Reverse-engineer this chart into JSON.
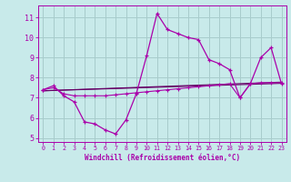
{
  "background_color": "#c8eaea",
  "grid_color": "#a8cccc",
  "line_color": "#aa00aa",
  "dark_line_color": "#660066",
  "xlabel": "Windchill (Refroidissement éolien,°C)",
  "ylim": [
    4.8,
    11.6
  ],
  "xlim": [
    -0.5,
    23.5
  ],
  "yticks": [
    5,
    6,
    7,
    8,
    9,
    10,
    11
  ],
  "xticks": [
    0,
    1,
    2,
    3,
    4,
    5,
    6,
    7,
    8,
    9,
    10,
    11,
    12,
    13,
    14,
    15,
    16,
    17,
    18,
    19,
    20,
    21,
    22,
    23
  ],
  "curve1_x": [
    0,
    1,
    2,
    3,
    4,
    5,
    6,
    7,
    8,
    9,
    10,
    11,
    12,
    13,
    14,
    15,
    16,
    17,
    18,
    19,
    20,
    21,
    22,
    23
  ],
  "curve1_y": [
    7.4,
    7.6,
    7.1,
    6.8,
    5.8,
    5.7,
    5.4,
    5.2,
    5.9,
    7.2,
    9.1,
    11.2,
    10.4,
    10.2,
    10.0,
    9.9,
    8.9,
    8.7,
    8.4,
    7.0,
    7.7,
    9.0,
    9.5,
    7.7
  ],
  "curve2_x": [
    0,
    1,
    2,
    3,
    4,
    5,
    6,
    7,
    8,
    9,
    10,
    11,
    12,
    13,
    14,
    15,
    16,
    17,
    18,
    19,
    20,
    21,
    22,
    23
  ],
  "curve2_y": [
    7.4,
    7.5,
    7.2,
    7.1,
    7.1,
    7.1,
    7.1,
    7.15,
    7.2,
    7.25,
    7.3,
    7.35,
    7.4,
    7.45,
    7.5,
    7.55,
    7.6,
    7.65,
    7.7,
    7.0,
    7.7,
    7.75,
    7.75,
    7.75
  ],
  "line1_x": [
    0,
    23
  ],
  "line1_y": [
    7.35,
    7.78
  ],
  "line2_x": [
    0,
    23
  ],
  "line2_y": [
    7.35,
    7.72
  ]
}
